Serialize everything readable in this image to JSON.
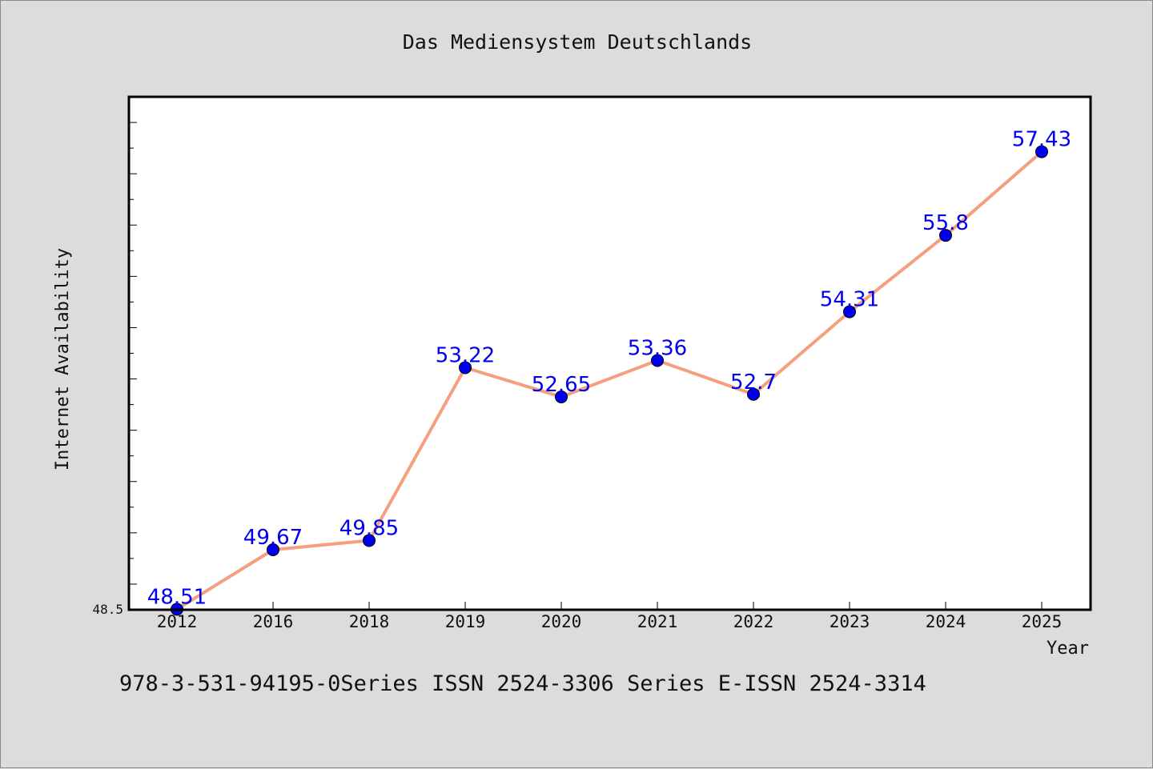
{
  "chart_data": {
    "type": "line",
    "title": "Das Mediensystem Deutschlands",
    "xlabel": "Year",
    "ylabel": "Internet Availability",
    "categories": [
      "2012",
      "2016",
      "2018",
      "2019",
      "2020",
      "2021",
      "2022",
      "2023",
      "2024",
      "2025"
    ],
    "series": [
      {
        "values": [
          48.51,
          49.67,
          49.85,
          53.22,
          52.65,
          53.36,
          52.7,
          54.31,
          55.8,
          57.43
        ],
        "labels": [
          "48.51",
          "49.67",
          "49.85",
          "53.22",
          "52.65",
          "53.36",
          "52.7",
          "54.31",
          "55.8",
          "57.43"
        ]
      }
    ],
    "ylim": [
      48.5,
      58.5
    ],
    "y_tick_labels": [
      "48.5"
    ],
    "grid": false,
    "colors": {
      "line": "#f4a07e",
      "marker": "#0000ee",
      "marker_edge": "#000000",
      "data_label": "#0000ee",
      "plot_bg": "#ffffff",
      "figure_bg": "#dcdcdc"
    }
  },
  "footer_text": "978-3-531-94195-0Series ISSN 2524-3306 Series E-ISSN 2524-3314"
}
